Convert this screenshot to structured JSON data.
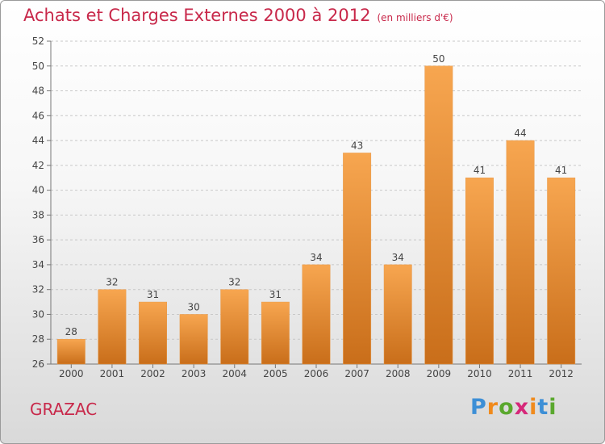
{
  "header": {
    "title": "Achats et Charges Externes 2000 à 2012",
    "unit": "(en milliers d'€)"
  },
  "footer": {
    "place": "GRAZAC",
    "logo": {
      "letters": [
        "P",
        "r",
        "o",
        "x",
        "i",
        "t",
        "i"
      ],
      "colors": [
        "#3d8fd6",
        "#f08a1c",
        "#5aa82e",
        "#d6287a",
        "#f08a1c",
        "#3d8fd6",
        "#5aa82e"
      ]
    }
  },
  "colors": {
    "bar_light": "#f7a650",
    "bar_dark": "#c96e1a",
    "axis": "#777777",
    "grid": "#c8c8c8"
  },
  "chart_data": {
    "type": "bar",
    "categories": [
      "2000",
      "2001",
      "2002",
      "2003",
      "2004",
      "2005",
      "2006",
      "2007",
      "2008",
      "2009",
      "2010",
      "2011",
      "2012"
    ],
    "values": [
      28,
      32,
      31,
      30,
      32,
      31,
      34,
      43,
      34,
      50,
      41,
      44,
      41
    ],
    "ylim": [
      26,
      52
    ],
    "yticks": [
      26,
      28,
      30,
      32,
      34,
      36,
      38,
      40,
      42,
      44,
      46,
      48,
      50,
      52
    ],
    "grid": true
  }
}
